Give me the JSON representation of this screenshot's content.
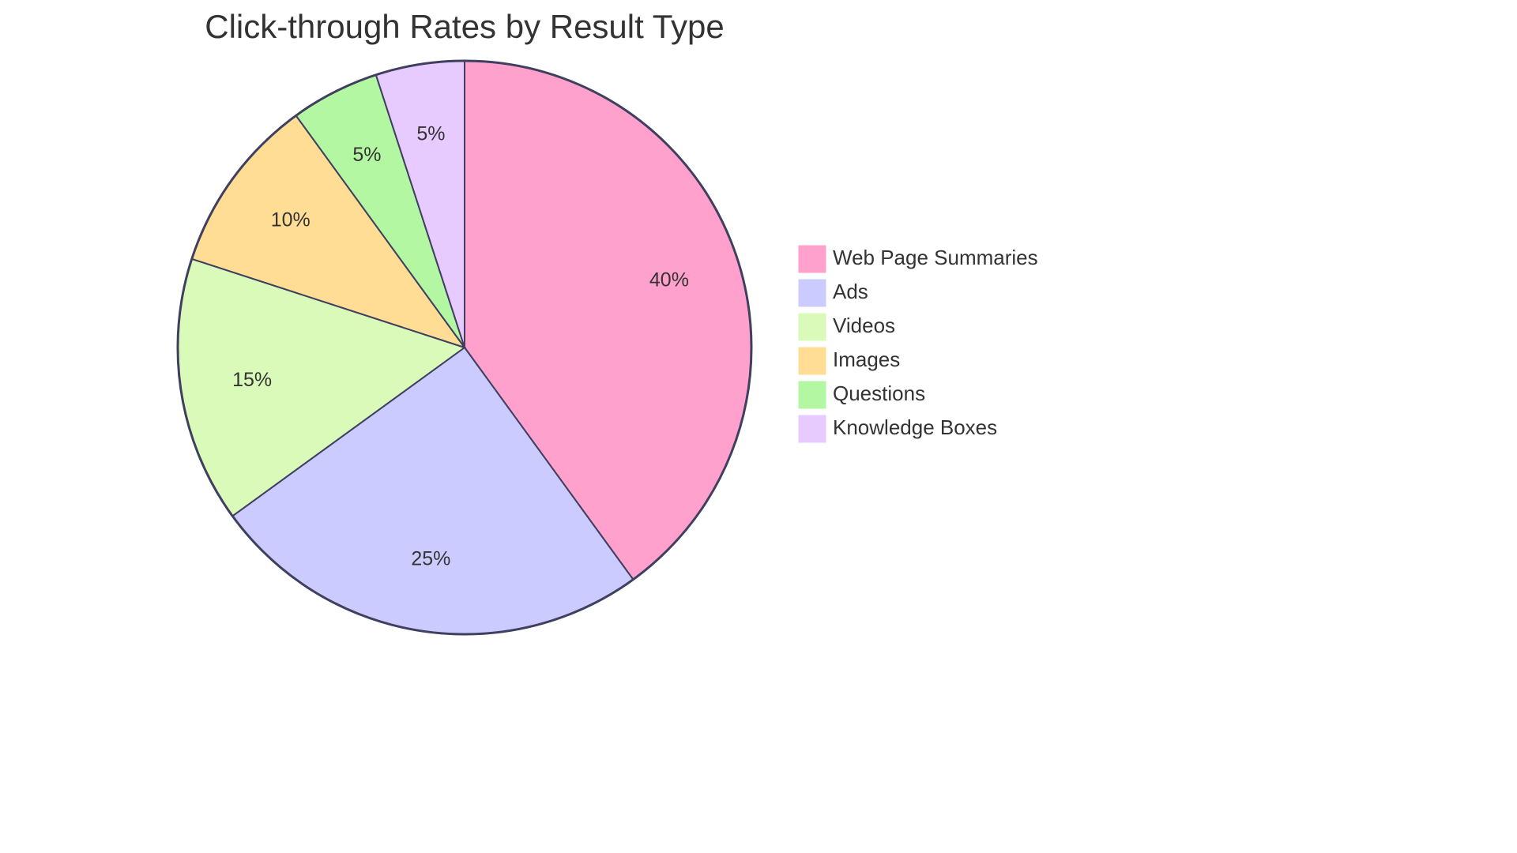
{
  "chart_data": {
    "type": "pie",
    "title": "Click-through Rates by Result Type",
    "categories": [
      "Web Page Summaries",
      "Ads",
      "Videos",
      "Images",
      "Questions",
      "Knowledge Boxes"
    ],
    "values": [
      40,
      25,
      15,
      10,
      5,
      5
    ],
    "labels": [
      "40%",
      "25%",
      "15%",
      "10%",
      "5%",
      "5%"
    ],
    "colors": [
      "#FFA1CC",
      "#CBCBFF",
      "#DAFAB9",
      "#FFDD95",
      "#B3F7A3",
      "#E7CBFF"
    ],
    "stroke_color": "#3F3F5F",
    "start_angle_deg": 0,
    "direction": "clockwise",
    "legend_position": "right"
  }
}
